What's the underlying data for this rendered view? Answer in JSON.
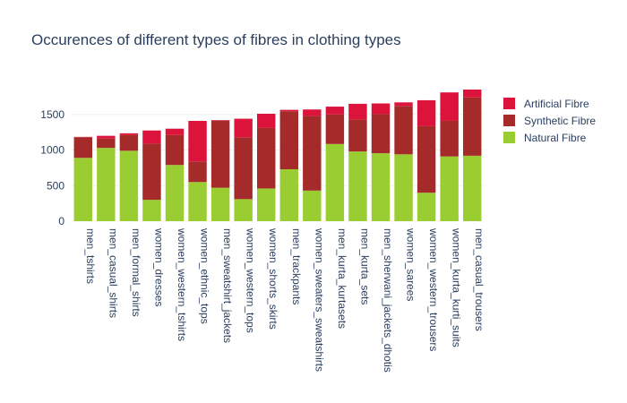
{
  "chart_data": {
    "type": "bar",
    "stacked": true,
    "title": "Occurences of different types of fibres in clothing types",
    "xlabel": "",
    "ylabel": "",
    "ylim": [
      0,
      1850
    ],
    "yticks": [
      0,
      500,
      1000,
      1500
    ],
    "grid": true,
    "legend_position": "top-right",
    "categories": [
      "men_tshirts",
      "men_casual_shirts",
      "men_formal_shirts",
      "women_dresses",
      "women_western_tshirts",
      "women_ethnic_tops",
      "men_sweatshirt_jackets",
      "women_western_tops",
      "women_shorts_skirts",
      "men_trackpants",
      "women_sweaters_sweatshirts",
      "men_kurta_kurtasets",
      "men_kurta_sets",
      "men_sherwani_jackets_dhotis",
      "women_sarees",
      "women_western_trousers",
      "women_kurta_kurti_suits",
      "men_casual_trousers"
    ],
    "series": [
      {
        "name": "Natural Fibre",
        "color": "#9acd32",
        "values": [
          890,
          1030,
          990,
          300,
          790,
          550,
          470,
          310,
          460,
          730,
          430,
          1085,
          980,
          955,
          940,
          400,
          910,
          920
        ]
      },
      {
        "name": "Synthetic Fibre",
        "color": "#a52a2a",
        "values": [
          290,
          130,
          220,
          790,
          420,
          290,
          945,
          870,
          850,
          815,
          1050,
          415,
          450,
          550,
          680,
          935,
          500,
          820
        ]
      },
      {
        "name": "Artificial Fibre",
        "color": "#dc143c",
        "values": [
          5,
          40,
          25,
          185,
          90,
          570,
          5,
          260,
          200,
          20,
          90,
          110,
          220,
          150,
          50,
          365,
          400,
          110
        ]
      }
    ],
    "legend_order": [
      "Artificial Fibre",
      "Synthetic Fibre",
      "Natural Fibre"
    ]
  }
}
